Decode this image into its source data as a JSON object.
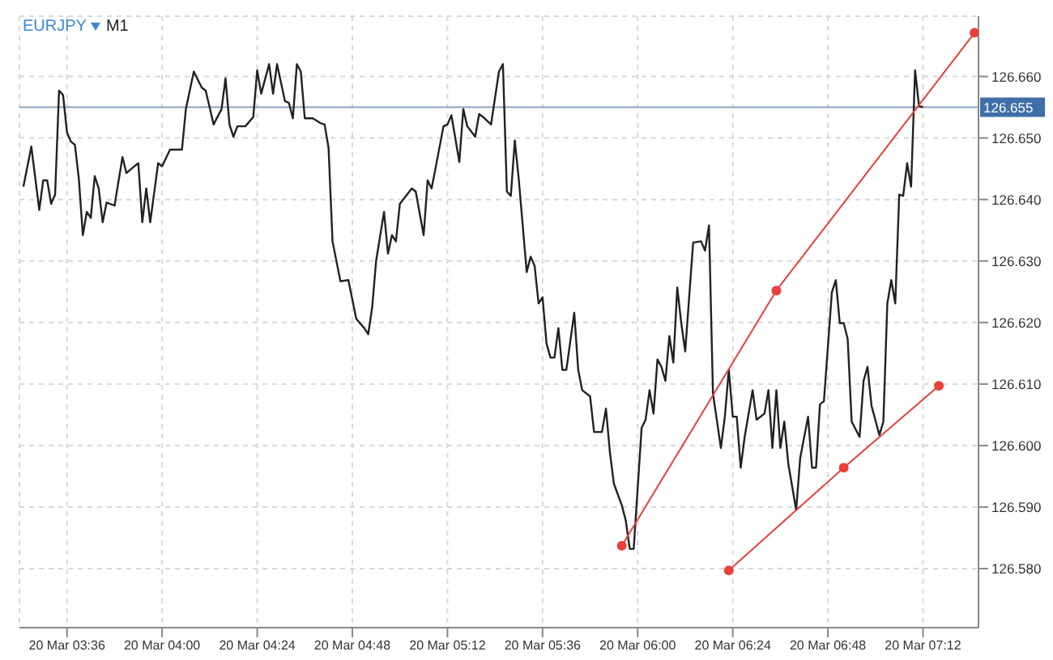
{
  "chart_data": {
    "type": "line",
    "title": "EURJPY",
    "subtitle": "M1",
    "xlim": [
      "--03-20T03:24",
      "--03-20T07:26"
    ],
    "ylim": [
      126.5704,
      126.6698
    ],
    "xticks": [
      {
        "value": "--03-20T03:36",
        "label": "20 Mar 03:36"
      },
      {
        "value": "--03-20T04:00",
        "label": "20 Mar 04:00"
      },
      {
        "value": "--03-20T04:24",
        "label": "20 Mar 04:24"
      },
      {
        "value": "--03-20T04:48",
        "label": "20 Mar 04:48"
      },
      {
        "value": "--03-20T05:12",
        "label": "20 Mar 05:12"
      },
      {
        "value": "--03-20T05:36",
        "label": "20 Mar 05:36"
      },
      {
        "value": "--03-20T06:00",
        "label": "20 Mar 06:00"
      },
      {
        "value": "--03-20T06:24",
        "label": "20 Mar 06:24"
      },
      {
        "value": "--03-20T06:48",
        "label": "20 Mar 06:48"
      },
      {
        "value": "--03-20T07:12",
        "label": "20 Mar 07:12"
      }
    ],
    "yticks": [
      {
        "value": 126.58,
        "label": "126.580"
      },
      {
        "value": 126.59,
        "label": "126.590"
      },
      {
        "value": 126.6,
        "label": "126.600"
      },
      {
        "value": 126.61,
        "label": "126.610"
      },
      {
        "value": 126.62,
        "label": "126.620"
      },
      {
        "value": 126.63,
        "label": "126.630"
      },
      {
        "value": 126.64,
        "label": "126.640"
      },
      {
        "value": 126.65,
        "label": "126.650"
      },
      {
        "value": 126.66,
        "label": "126.660"
      }
    ],
    "grid": true,
    "legend": false,
    "line_style": "solid",
    "ref_lines": [
      {
        "axis": "y",
        "value": 126.655,
        "label": "126.655",
        "color": "#8aa4c0"
      }
    ],
    "series": [
      {
        "color": "#222222",
        "marker": "none",
        "x": [
          "--03-20T03:25",
          "--03-20T03:27",
          "--03-20T03:29",
          "--03-20T03:30",
          "--03-20T03:31",
          "--03-20T03:32",
          "--03-20T03:33",
          "--03-20T03:34",
          "--03-20T03:35",
          "--03-20T03:36",
          "--03-20T03:37",
          "--03-20T03:38",
          "--03-20T03:39",
          "--03-20T03:40",
          "--03-20T03:41",
          "--03-20T03:42",
          "--03-20T03:43",
          "--03-20T03:44",
          "--03-20T03:45",
          "--03-20T03:46",
          "--03-20T03:48",
          "--03-20T03:50",
          "--03-20T03:51",
          "--03-20T03:53",
          "--03-20T03:54",
          "--03-20T03:55",
          "--03-20T03:56",
          "--03-20T03:57",
          "--03-20T03:59",
          "--03-20T04:00",
          "--03-20T04:02",
          "--03-20T04:05",
          "--03-20T04:06",
          "--03-20T04:08",
          "--03-20T04:10",
          "--03-20T04:11",
          "--03-20T04:13",
          "--03-20T04:15",
          "--03-20T04:16",
          "--03-20T04:17",
          "--03-20T04:18",
          "--03-20T04:19",
          "--03-20T04:21",
          "--03-20T04:23",
          "--03-20T04:24",
          "--03-20T04:25",
          "--03-20T04:27",
          "--03-20T04:28",
          "--03-20T04:29",
          "--03-20T04:31",
          "--03-20T04:32",
          "--03-20T04:33",
          "--03-20T04:34",
          "--03-20T04:35",
          "--03-20T04:36",
          "--03-20T04:38",
          "--03-20T04:40",
          "--03-20T04:41",
          "--03-20T04:42",
          "--03-20T04:43",
          "--03-20T04:45",
          "--03-20T04:47",
          "--03-20T04:49",
          "--03-20T04:51",
          "--03-20T04:52",
          "--03-20T04:53",
          "--03-20T04:54",
          "--03-20T04:56",
          "--03-20T04:57",
          "--03-20T04:58",
          "--03-20T04:59",
          "--03-20T05:00",
          "--03-20T05:03",
          "--03-20T05:04",
          "--03-20T05:06",
          "--03-20T05:07",
          "--03-20T05:08",
          "--03-20T05:09",
          "--03-20T05:11",
          "--03-20T05:12",
          "--03-20T05:13",
          "--03-20T05:15",
          "--03-20T05:16",
          "--03-20T05:17",
          "--03-20T05:19",
          "--03-20T05:20",
          "--03-20T05:21",
          "--03-20T05:23",
          "--03-20T05:25",
          "--03-20T05:26",
          "--03-20T05:27",
          "--03-20T05:28",
          "--03-20T05:29",
          "--03-20T05:30",
          "--03-20T05:32",
          "--03-20T05:33",
          "--03-20T05:34",
          "--03-20T05:35",
          "--03-20T05:36",
          "--03-20T05:37",
          "--03-20T05:38",
          "--03-20T05:39",
          "--03-20T05:40",
          "--03-20T05:41",
          "--03-20T05:42",
          "--03-20T05:44",
          "--03-20T05:45",
          "--03-20T05:46",
          "--03-20T05:48",
          "--03-20T05:49",
          "--03-20T05:51",
          "--03-20T05:52",
          "--03-20T05:53",
          "--03-20T05:54",
          "--03-20T05:56",
          "--03-20T05:57",
          "--03-20T05:58",
          "--03-20T05:59",
          "--03-20T06:01",
          "--03-20T06:02",
          "--03-20T06:03",
          "--03-20T06:04",
          "--03-20T06:05",
          "--03-20T06:06",
          "--03-20T06:07",
          "--03-20T06:08",
          "--03-20T06:09",
          "--03-20T06:10",
          "--03-20T06:11",
          "--03-20T06:12",
          "--03-20T06:14",
          "--03-20T06:16",
          "--03-20T06:17",
          "--03-20T06:18",
          "--03-20T06:19",
          "--03-20T06:21",
          "--03-20T06:22",
          "--03-20T06:23",
          "--03-20T06:24",
          "--03-20T06:25",
          "--03-20T06:26",
          "--03-20T06:27",
          "--03-20T06:29",
          "--03-20T06:30",
          "--03-20T06:32",
          "--03-20T06:33",
          "--03-20T06:34",
          "--03-20T06:35",
          "--03-20T06:36",
          "--03-20T06:37",
          "--03-20T06:38",
          "--03-20T06:40",
          "--03-20T06:41",
          "--03-20T06:43",
          "--03-20T06:44",
          "--03-20T06:45",
          "--03-20T06:46",
          "--03-20T06:47",
          "--03-20T06:49",
          "--03-20T06:50",
          "--03-20T06:51",
          "--03-20T06:52",
          "--03-20T06:53",
          "--03-20T06:54",
          "--03-20T06:56",
          "--03-20T06:57",
          "--03-20T06:58",
          "--03-20T06:59",
          "--03-20T07:01",
          "--03-20T07:02",
          "--03-20T07:03",
          "--03-20T07:04",
          "--03-20T07:05",
          "--03-20T07:06",
          "--03-20T07:07",
          "--03-20T07:08",
          "--03-20T07:09",
          "--03-20T07:10",
          "--03-20T07:11",
          "--03-20T07:12"
        ],
        "values": [
          126.6421,
          126.6486,
          126.6383,
          126.6431,
          126.6431,
          126.6393,
          126.6408,
          126.6577,
          126.657,
          126.6509,
          126.6494,
          126.6489,
          126.6433,
          126.6342,
          126.638,
          126.637,
          126.6438,
          126.6418,
          126.6363,
          126.6395,
          126.639,
          126.6469,
          126.6443,
          126.6454,
          126.6459,
          126.6363,
          126.6418,
          126.6363,
          126.6459,
          126.6454,
          126.6481,
          126.6481,
          126.6547,
          126.6608,
          126.6582,
          126.6577,
          126.6522,
          126.6547,
          126.6597,
          126.6522,
          126.6502,
          126.6519,
          126.6519,
          126.6534,
          126.661,
          126.6572,
          126.662,
          126.6572,
          126.662,
          126.656,
          126.6557,
          126.6532,
          126.662,
          126.6608,
          126.6532,
          126.6532,
          126.6524,
          126.6522,
          126.6484,
          126.6332,
          126.6267,
          126.6269,
          126.6206,
          126.6191,
          126.6181,
          126.6224,
          126.63,
          126.638,
          126.6312,
          126.6342,
          126.6332,
          126.6393,
          126.6418,
          126.6413,
          126.6342,
          126.6431,
          126.6418,
          126.6451,
          126.6519,
          126.6522,
          126.6537,
          126.6461,
          126.6547,
          126.6519,
          126.6502,
          126.6539,
          126.6534,
          126.6522,
          126.6608,
          126.662,
          126.6413,
          126.6406,
          126.6496,
          126.6433,
          126.6282,
          126.6307,
          126.6292,
          126.6231,
          126.6241,
          126.6166,
          126.6143,
          126.6143,
          126.6191,
          126.6123,
          126.6123,
          126.6216,
          126.6123,
          126.609,
          126.608,
          126.6022,
          126.6022,
          126.606,
          126.5989,
          126.5938,
          126.5903,
          126.5878,
          126.5832,
          126.5832,
          126.6029,
          126.6042,
          126.609,
          126.6052,
          126.614,
          126.6128,
          126.6105,
          126.6178,
          126.6135,
          126.6257,
          126.6199,
          126.6153,
          126.633,
          126.6332,
          126.6317,
          126.6358,
          126.6085,
          126.5996,
          126.6047,
          126.6123,
          126.6047,
          126.6047,
          126.5964,
          126.6014,
          126.609,
          126.6042,
          126.6052,
          126.609,
          126.5996,
          126.609,
          126.5996,
          126.6039,
          126.5971,
          126.5895,
          126.5979,
          126.6047,
          126.5964,
          126.5964,
          126.6067,
          126.6072,
          126.6249,
          126.6269,
          126.6199,
          126.6199,
          126.6173,
          126.6039,
          126.6014,
          126.6105,
          126.6128,
          126.6065,
          126.6017,
          126.6039,
          126.6231,
          126.6269,
          126.6231,
          126.6408,
          126.6406,
          126.6459,
          126.6421,
          126.661,
          126.6552,
          126.655
        ]
      },
      {
        "color": "#e8403a",
        "marker": "circle",
        "x": [
          "--03-20T05:56",
          "--03-20T06:35",
          "--03-20T07:25"
        ],
        "values": [
          126.5837,
          126.6252,
          126.6671
        ]
      },
      {
        "color": "#e8403a",
        "marker": "circle",
        "x": [
          "--03-20T06:23",
          "--03-20T06:52",
          "--03-20T07:16"
        ],
        "values": [
          126.5797,
          126.5964,
          126.6097
        ]
      }
    ]
  }
}
